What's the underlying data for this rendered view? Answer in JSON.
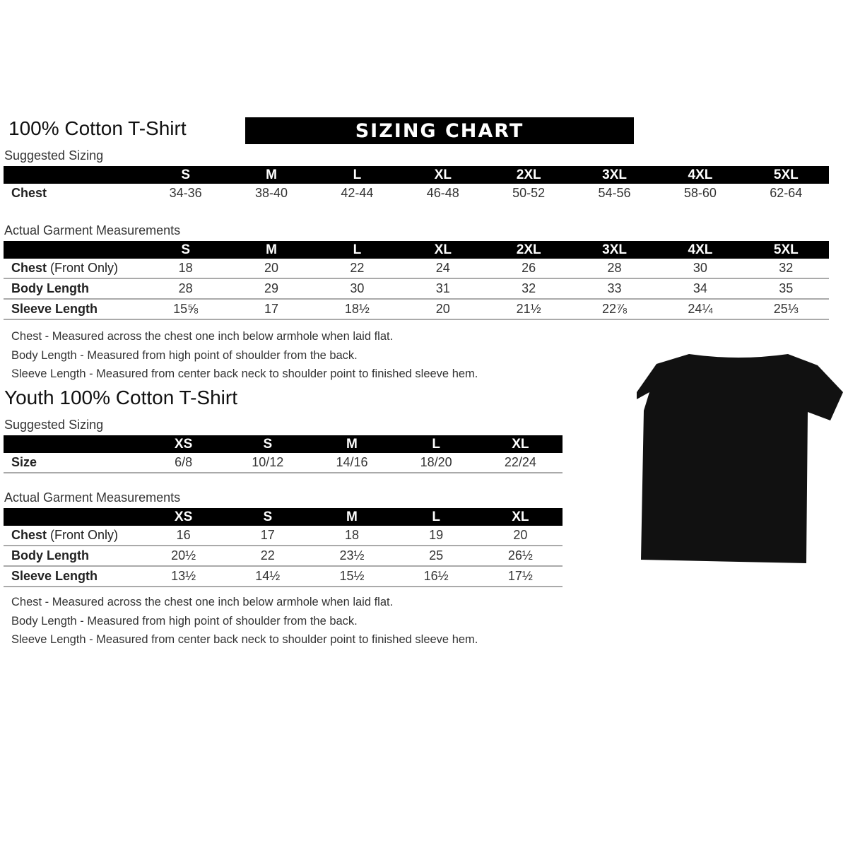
{
  "adult": {
    "title": "100% Cotton T-Shirt",
    "banner": "SIZING CHART",
    "suggested_label": "Suggested Sizing",
    "sizes": [
      "S",
      "M",
      "L",
      "XL",
      "2XL",
      "3XL",
      "4XL",
      "5XL"
    ],
    "suggested_rows": [
      {
        "label": "Chest",
        "values": [
          "34-36",
          "38-40",
          "42-44",
          "46-48",
          "50-52",
          "54-56",
          "58-60",
          "62-64"
        ]
      }
    ],
    "actual_label": "Actual Garment Measurements",
    "actual_rows": [
      {
        "label": "Chest",
        "label_suffix": " (Front Only)",
        "values": [
          "18",
          "20",
          "22",
          "24",
          "26",
          "28",
          "30",
          "32"
        ]
      },
      {
        "label": "Body Length",
        "values": [
          "28",
          "29",
          "30",
          "31",
          "32",
          "33",
          "34",
          "35"
        ]
      },
      {
        "label": "Sleeve Length",
        "values": [
          "15⅝",
          "17",
          "18½",
          "20",
          "21½",
          "22⅞",
          "24¼",
          "25⅓"
        ]
      }
    ],
    "notes": [
      "Chest - Measured across the chest one inch below armhole when laid flat.",
      "Body Length - Measured from high point of shoulder from the back.",
      "Sleeve Length - Measured from center back neck to shoulder point to finished sleeve hem."
    ]
  },
  "youth": {
    "title": "Youth 100% Cotton T-Shirt",
    "suggested_label": "Suggested Sizing",
    "sizes": [
      "XS",
      "S",
      "M",
      "L",
      "XL"
    ],
    "suggested_rows": [
      {
        "label": "Size",
        "values": [
          "6/8",
          "10/12",
          "14/16",
          "18/20",
          "22/24"
        ]
      }
    ],
    "actual_label": "Actual Garment Measurements",
    "actual_rows": [
      {
        "label": "Chest",
        "label_suffix": " (Front Only)",
        "values": [
          "16",
          "17",
          "18",
          "19",
          "20"
        ]
      },
      {
        "label": "Body Length",
        "values": [
          "20½",
          "22",
          "23½",
          "25",
          "26½"
        ]
      },
      {
        "label": "Sleeve Length",
        "values": [
          "13½",
          "14½",
          "15½",
          "16½",
          "17½"
        ]
      }
    ],
    "notes": [
      "Chest - Measured across the chest one inch below armhole when laid flat.",
      "Body Length - Measured from high point of shoulder from the back.",
      "Sleeve Length - Measured from center back neck to shoulder point to finished sleeve hem."
    ]
  },
  "tshirt_image": {
    "color": "#111111"
  }
}
